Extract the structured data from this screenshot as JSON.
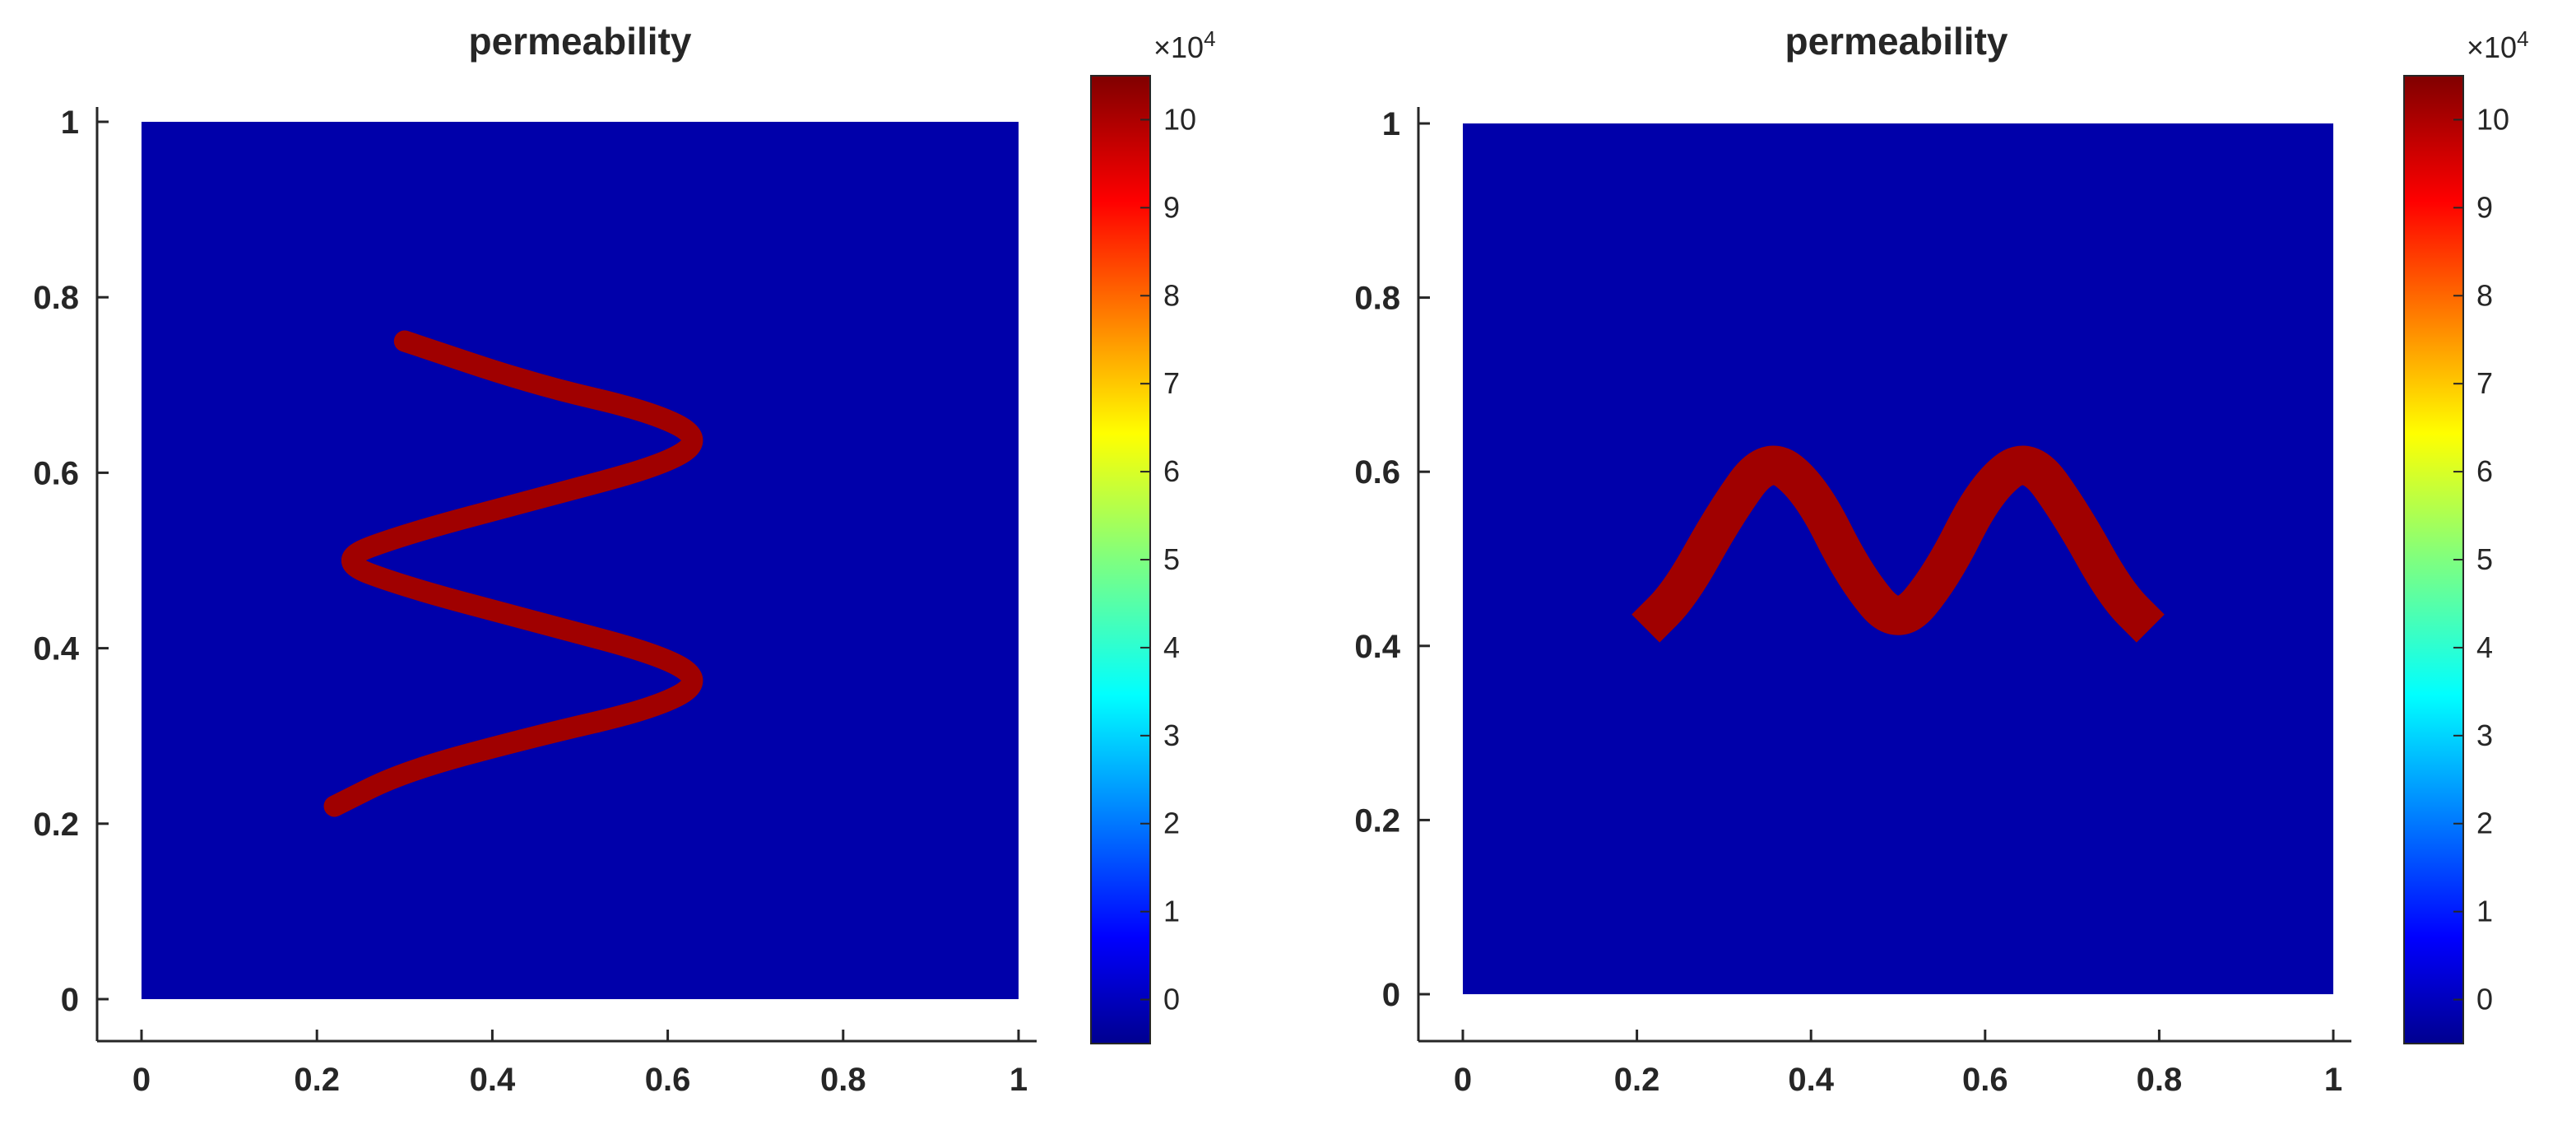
{
  "chart_data": [
    {
      "type": "heatmap",
      "title": "permeability",
      "xlim": [
        0,
        1
      ],
      "ylim": [
        0,
        1
      ],
      "x_ticks": [
        "0",
        "0.2",
        "0.4",
        "0.6",
        "0.8",
        "1"
      ],
      "y_ticks": [
        "0",
        "0.2",
        "0.4",
        "0.6",
        "0.8",
        "1"
      ],
      "background_value": 0,
      "channel_value": 100000,
      "channel_shape": "sinusoidal channel oscillating in x along y",
      "channel_points": [
        [
          0.22,
          0.22
        ],
        [
          0.3,
          0.26
        ],
        [
          0.45,
          0.3
        ],
        [
          0.58,
          0.33
        ],
        [
          0.64,
          0.36
        ],
        [
          0.6,
          0.39
        ],
        [
          0.45,
          0.43
        ],
        [
          0.3,
          0.47
        ],
        [
          0.22,
          0.5
        ],
        [
          0.3,
          0.53
        ],
        [
          0.45,
          0.57
        ],
        [
          0.6,
          0.61
        ],
        [
          0.64,
          0.64
        ],
        [
          0.58,
          0.67
        ],
        [
          0.45,
          0.7
        ],
        [
          0.3,
          0.75
        ]
      ],
      "colorbar": {
        "colormap": "jet",
        "range": [
          -0.5,
          10.5
        ],
        "ticks": [
          "0",
          "1",
          "2",
          "3",
          "4",
          "5",
          "6",
          "7",
          "8",
          "9",
          "10"
        ],
        "exponent_base": "×10",
        "exponent_power": "4"
      }
    },
    {
      "type": "heatmap",
      "title": "permeability",
      "xlim": [
        0,
        1
      ],
      "ylim": [
        0,
        1
      ],
      "x_ticks": [
        "0",
        "0.2",
        "0.4",
        "0.6",
        "0.8",
        "1"
      ],
      "y_ticks": [
        "0",
        "0.2",
        "0.4",
        "0.6",
        "0.8",
        "1"
      ],
      "background_value": 0,
      "channel_value": 100000,
      "channel_shape": "sinusoidal channel oscillating in y along x",
      "channel_points": [
        [
          0.21,
          0.42
        ],
        [
          0.25,
          0.46
        ],
        [
          0.3,
          0.55
        ],
        [
          0.35,
          0.62
        ],
        [
          0.4,
          0.58
        ],
        [
          0.45,
          0.48
        ],
        [
          0.5,
          0.42
        ],
        [
          0.55,
          0.48
        ],
        [
          0.6,
          0.58
        ],
        [
          0.65,
          0.62
        ],
        [
          0.7,
          0.55
        ],
        [
          0.75,
          0.46
        ],
        [
          0.79,
          0.42
        ]
      ],
      "colorbar": {
        "colormap": "jet",
        "range": [
          -0.5,
          10.5
        ],
        "ticks": [
          "0",
          "1",
          "2",
          "3",
          "4",
          "5",
          "6",
          "7",
          "8",
          "9",
          "10"
        ],
        "exponent_base": "×10",
        "exponent_power": "4"
      }
    }
  ],
  "colors": {
    "background_blue": "#0000AA",
    "channel_red": "#A00000",
    "axis": "#262626"
  }
}
